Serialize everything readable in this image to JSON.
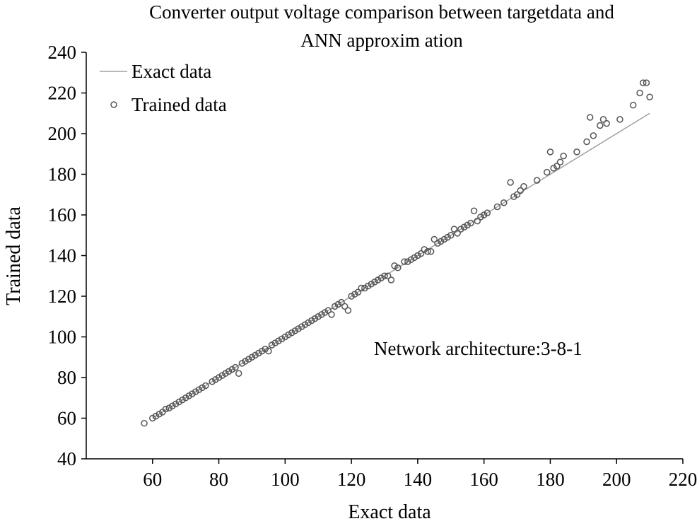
{
  "chart_data": {
    "type": "scatter",
    "title_lines": [
      "Converter output voltage comparison between targetdata and",
      "ANN approxim ation"
    ],
    "xlabel": "Exact data",
    "ylabel": "Trained data",
    "xlim": [
      40,
      220
    ],
    "ylim": [
      40,
      240
    ],
    "xticks": [
      60,
      80,
      100,
      120,
      140,
      160,
      180,
      200,
      220
    ],
    "yticks": [
      40,
      60,
      80,
      100,
      120,
      140,
      160,
      180,
      200,
      220,
      240
    ],
    "grid": false,
    "legend_position": "top-left",
    "annotation": "Network architecture:3-8-1",
    "colors": {
      "line": "#a0a0a0",
      "marker": "#555555",
      "axis": "#000000"
    },
    "series": [
      {
        "name": "Exact data",
        "kind": "line",
        "x": [
          60,
          210
        ],
        "y": [
          60,
          210
        ]
      },
      {
        "name": "Trained data",
        "kind": "scatter",
        "points": [
          [
            57.5,
            57.5
          ],
          [
            60,
            60
          ],
          [
            61,
            61
          ],
          [
            62,
            62
          ],
          [
            63,
            63
          ],
          [
            64,
            64.5
          ],
          [
            65,
            65
          ],
          [
            66,
            66
          ],
          [
            67,
            67
          ],
          [
            68,
            68
          ],
          [
            69,
            69
          ],
          [
            70,
            70
          ],
          [
            71,
            71
          ],
          [
            72,
            72
          ],
          [
            73,
            73
          ],
          [
            74,
            74
          ],
          [
            75,
            75
          ],
          [
            76,
            76
          ],
          [
            78,
            78
          ],
          [
            79,
            79
          ],
          [
            80,
            80
          ],
          [
            81,
            81
          ],
          [
            82,
            82
          ],
          [
            83,
            83
          ],
          [
            84,
            84
          ],
          [
            85,
            85
          ],
          [
            86,
            82
          ],
          [
            87,
            87
          ],
          [
            88,
            88
          ],
          [
            89,
            89
          ],
          [
            90,
            90
          ],
          [
            91,
            91
          ],
          [
            92,
            92
          ],
          [
            93,
            93
          ],
          [
            94,
            94
          ],
          [
            95,
            93
          ],
          [
            96,
            96
          ],
          [
            97,
            97
          ],
          [
            98,
            98
          ],
          [
            99,
            99
          ],
          [
            100,
            100
          ],
          [
            101,
            101
          ],
          [
            102,
            102
          ],
          [
            103,
            103
          ],
          [
            104,
            104
          ],
          [
            105,
            105
          ],
          [
            106,
            106
          ],
          [
            107,
            107
          ],
          [
            108,
            108
          ],
          [
            109,
            109
          ],
          [
            110,
            110
          ],
          [
            111,
            111
          ],
          [
            112,
            112
          ],
          [
            113,
            113
          ],
          [
            114,
            111
          ],
          [
            115,
            115
          ],
          [
            116,
            116
          ],
          [
            117,
            117
          ],
          [
            118,
            115
          ],
          [
            119,
            113
          ],
          [
            120,
            120
          ],
          [
            121,
            121
          ],
          [
            122,
            122
          ],
          [
            123,
            124
          ],
          [
            124,
            124
          ],
          [
            125,
            125
          ],
          [
            126,
            126
          ],
          [
            127,
            127
          ],
          [
            128,
            128
          ],
          [
            129,
            129
          ],
          [
            130,
            130
          ],
          [
            131,
            130
          ],
          [
            132,
            128
          ],
          [
            133,
            135
          ],
          [
            134,
            134
          ],
          [
            136,
            137
          ],
          [
            137,
            137
          ],
          [
            138,
            138
          ],
          [
            139,
            139
          ],
          [
            140,
            140
          ],
          [
            141,
            141
          ],
          [
            142,
            143
          ],
          [
            143,
            142
          ],
          [
            144,
            142
          ],
          [
            145,
            148
          ],
          [
            146,
            146
          ],
          [
            147,
            147
          ],
          [
            148,
            148
          ],
          [
            149,
            149
          ],
          [
            150,
            150
          ],
          [
            151,
            153
          ],
          [
            152,
            151
          ],
          [
            153,
            153
          ],
          [
            154,
            154
          ],
          [
            155,
            155
          ],
          [
            156,
            156
          ],
          [
            157,
            162
          ],
          [
            158,
            157
          ],
          [
            159,
            159
          ],
          [
            160,
            160
          ],
          [
            161,
            161
          ],
          [
            164,
            164
          ],
          [
            166,
            166
          ],
          [
            168,
            176
          ],
          [
            169,
            169
          ],
          [
            170,
            170
          ],
          [
            171,
            172
          ],
          [
            172,
            174
          ],
          [
            176,
            177
          ],
          [
            179,
            181
          ],
          [
            180,
            191
          ],
          [
            181,
            183
          ],
          [
            182,
            184
          ],
          [
            183,
            186
          ],
          [
            184,
            189
          ],
          [
            188,
            191
          ],
          [
            191,
            196
          ],
          [
            192,
            208
          ],
          [
            193,
            199
          ],
          [
            195,
            204
          ],
          [
            196,
            207
          ],
          [
            197,
            205
          ],
          [
            201,
            207
          ],
          [
            205,
            214
          ],
          [
            207,
            220
          ],
          [
            208,
            225
          ],
          [
            209,
            225
          ],
          [
            210,
            218
          ]
        ]
      }
    ]
  }
}
